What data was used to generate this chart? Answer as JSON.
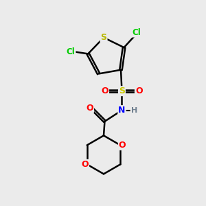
{
  "background_color": "#ebebeb",
  "atom_colors": {
    "C": "#000000",
    "H": "#708090",
    "N": "#0000ff",
    "O": "#ff0000",
    "S_thio": "#b8b800",
    "S_sulfonyl": "#cccc00",
    "Cl": "#00cc00"
  },
  "figsize": [
    3.0,
    3.0
  ],
  "dpi": 100,
  "xlim": [
    0,
    10
  ],
  "ylim": [
    0,
    10
  ]
}
